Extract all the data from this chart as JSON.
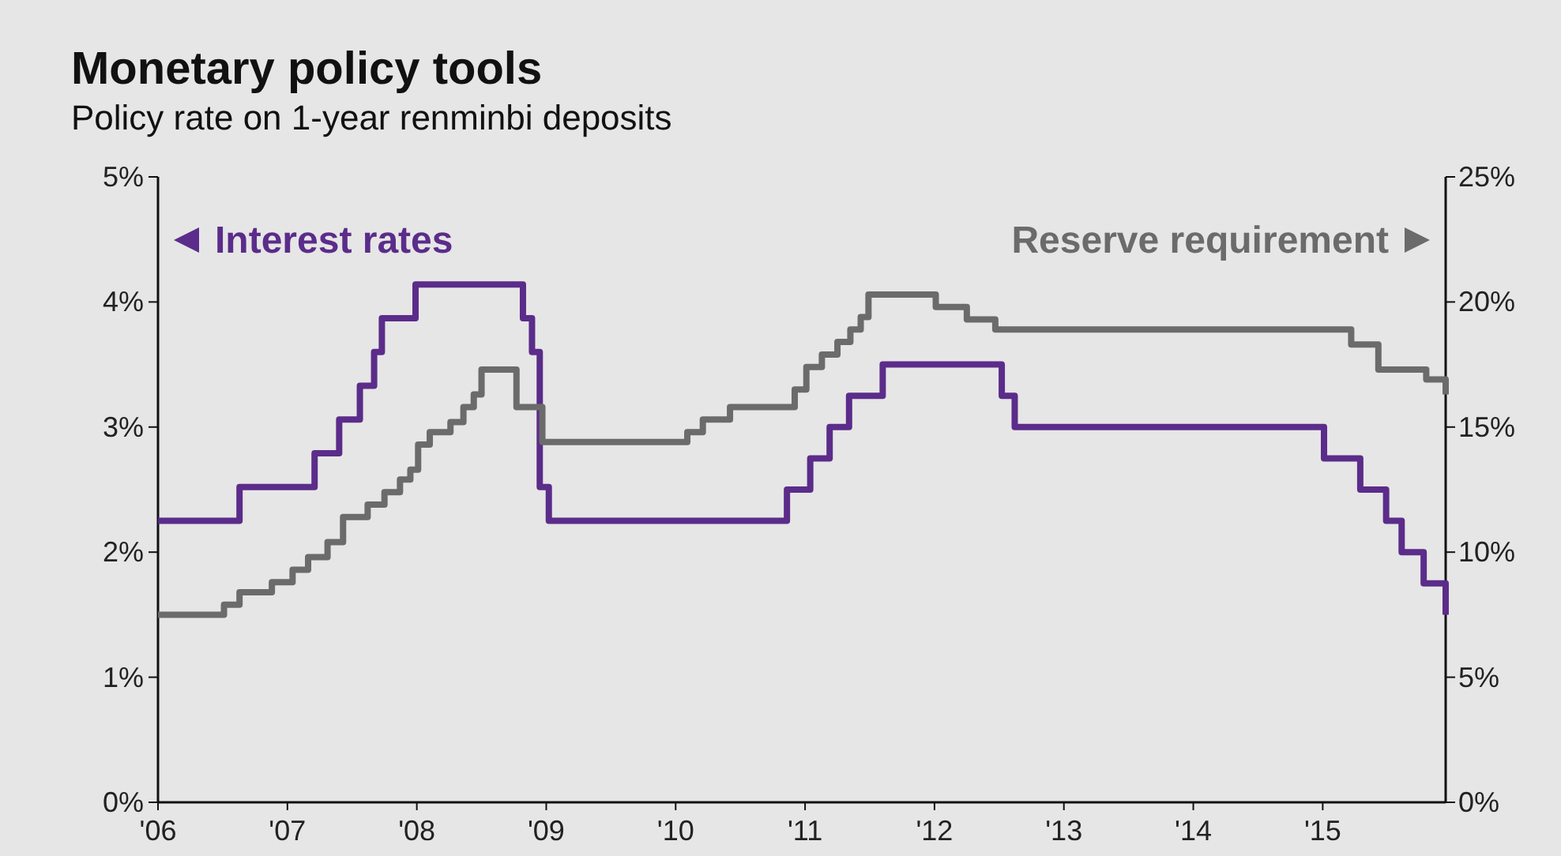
{
  "chart_data": {
    "type": "step",
    "title": "Monetary policy tools",
    "subtitle": "Policy rate on 1-year renminbi deposits",
    "xlim": [
      2006,
      2015.95
    ],
    "xticks": [
      {
        "value": 2006,
        "label": "'06"
      },
      {
        "value": 2007,
        "label": "'07"
      },
      {
        "value": 2008,
        "label": "'08"
      },
      {
        "value": 2009,
        "label": "'09"
      },
      {
        "value": 2010,
        "label": "'10"
      },
      {
        "value": 2011,
        "label": "'11"
      },
      {
        "value": 2012,
        "label": "'12"
      },
      {
        "value": 2013,
        "label": "'13"
      },
      {
        "value": 2014,
        "label": "'14"
      },
      {
        "value": 2015,
        "label": "'15"
      }
    ],
    "ylim": [
      0,
      5
    ],
    "yticks": [
      {
        "value": 0,
        "label": "0%"
      },
      {
        "value": 1,
        "label": "1%"
      },
      {
        "value": 2,
        "label": "2%"
      },
      {
        "value": 3,
        "label": "3%"
      },
      {
        "value": 4,
        "label": "4%"
      },
      {
        "value": 5,
        "label": "5%"
      }
    ],
    "y2lim": [
      0,
      25
    ],
    "y2ticks": [
      {
        "value": 0,
        "label": "0%"
      },
      {
        "value": 5,
        "label": "5%"
      },
      {
        "value": 10,
        "label": "10%"
      },
      {
        "value": 15,
        "label": "15%"
      },
      {
        "value": 20,
        "label": "20%"
      },
      {
        "value": 25,
        "label": "25%"
      }
    ],
    "legend": "top",
    "grid": false,
    "line_style": "solid",
    "marker": "none",
    "series": [
      {
        "name": "Interest rates",
        "color": "#5b2c8a",
        "axis": "y",
        "x": [
          2006,
          2006.63,
          2007.21,
          2007.4,
          2007.56,
          2007.67,
          2007.73,
          2007.99,
          2008.82,
          2008.89,
          2008.95,
          2009.02,
          2010.86,
          2011.04,
          2011.19,
          2011.34,
          2011.6,
          2012.52,
          2012.62,
          2015.01,
          2015.29,
          2015.49,
          2015.61,
          2015.78,
          2015.95
        ],
        "values": [
          2.25,
          2.52,
          2.79,
          3.06,
          3.33,
          3.6,
          3.87,
          4.14,
          3.87,
          3.6,
          2.52,
          2.25,
          2.5,
          2.75,
          3.0,
          3.25,
          3.5,
          3.25,
          3.0,
          2.75,
          2.5,
          2.25,
          2.0,
          1.75,
          1.5
        ]
      },
      {
        "name": "Reserve requirement",
        "color": "#6b6b6b",
        "axis": "y2",
        "x": [
          2006,
          2006.51,
          2006.63,
          2006.88,
          2007.04,
          2007.16,
          2007.31,
          2007.43,
          2007.62,
          2007.75,
          2007.87,
          2007.95,
          2008.01,
          2008.1,
          2008.26,
          2008.36,
          2008.44,
          2008.5,
          2008.77,
          2008.97,
          2010.09,
          2010.21,
          2010.42,
          2010.92,
          2011.01,
          2011.13,
          2011.25,
          2011.35,
          2011.43,
          2011.49,
          2012.01,
          2012.25,
          2012.47,
          2015.22,
          2015.43,
          2015.8,
          2015.95
        ],
        "values": [
          7.5,
          7.9,
          8.4,
          8.8,
          9.3,
          9.8,
          10.4,
          11.4,
          11.9,
          12.4,
          12.9,
          13.3,
          14.3,
          14.8,
          15.2,
          15.8,
          16.3,
          17.3,
          15.8,
          14.4,
          14.8,
          15.3,
          15.8,
          16.5,
          17.4,
          17.9,
          18.4,
          18.9,
          19.4,
          20.3,
          19.8,
          19.3,
          18.9,
          18.3,
          17.3,
          16.9,
          16.3
        ]
      }
    ]
  }
}
